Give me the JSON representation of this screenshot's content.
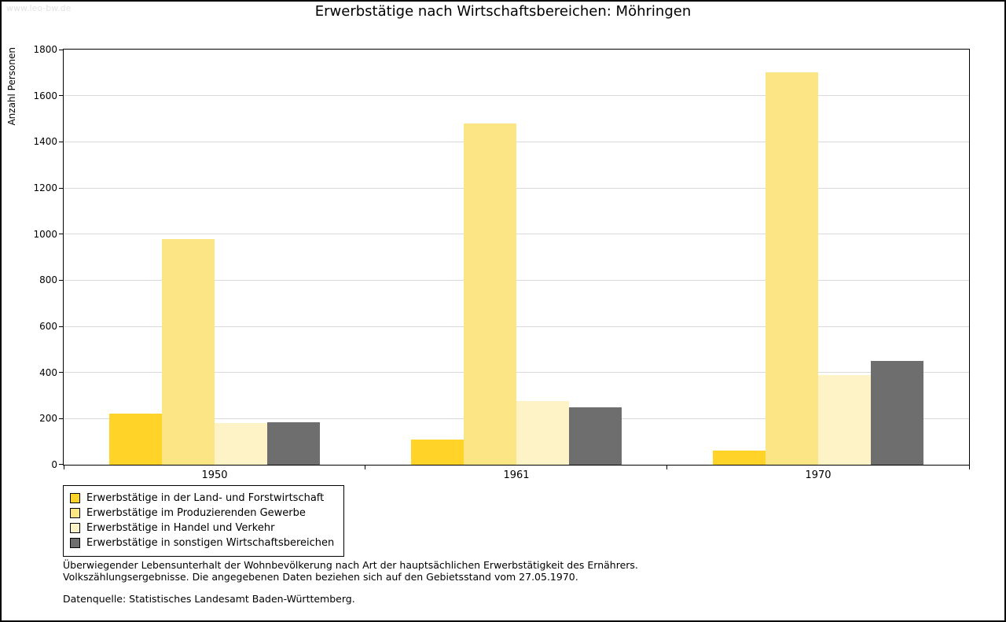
{
  "page": {
    "watermark": "www.leo-bw.de",
    "title": "Erwerbstätige nach Wirtschaftsbereichen: Möhringen",
    "footnote_line1": "Überwiegender Lebensunterhalt der Wohnbevölkerung nach Art der hauptsächlichen Erwerbstätigkeit des Ernährers.",
    "footnote_line2": "Volkszählungsergebnisse. Die angegebenen Daten beziehen sich auf den Gebietsstand vom 27.05.1970.",
    "source": "Datenquelle: Statistisches Landesamt Baden-Württemberg."
  },
  "chart_data": {
    "type": "bar",
    "title": "Erwerbstätige nach Wirtschaftsbereichen: Möhringen",
    "categories": [
      "1950",
      "1961",
      "1970"
    ],
    "series": [
      {
        "name": "Erwerbstätige in der Land- und Forstwirtschaft",
        "color": "#FFD327",
        "values": [
          220,
          110,
          60
        ]
      },
      {
        "name": "Erwerbstätige im Produzierenden Gewerbe",
        "color": "#FBE584",
        "values": [
          980,
          1480,
          1700
        ]
      },
      {
        "name": "Erwerbstätige in Handel und Verkehr",
        "color": "#FEF3C6",
        "values": [
          180,
          275,
          390
        ]
      },
      {
        "name": "Erwerbstätige in sonstigen Wirtschaftsbereichen",
        "color": "#6E6E6E",
        "values": [
          185,
          250,
          450
        ]
      }
    ],
    "xlabel": "",
    "ylabel": "Anzahl Personen",
    "ylim": [
      0,
      1800
    ],
    "ytick_step": 200,
    "grid": true,
    "legend_position": "bottom-left"
  }
}
